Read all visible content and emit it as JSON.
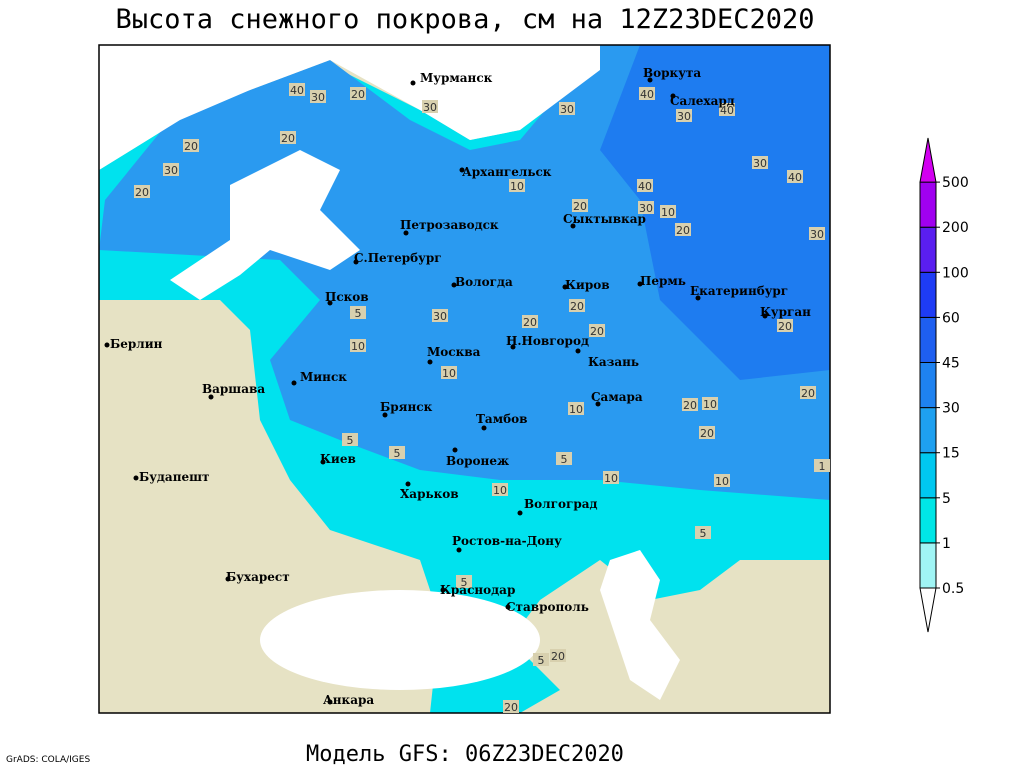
{
  "title": "Высота снежного покрова, см на 12Z23DEC2020",
  "subtitle": "Модель GFS: 06Z23DEC2020",
  "credit": "GrADS: COLA/IGES",
  "cities": [
    "Мурманск",
    "Воркута",
    "Салехард",
    "Архангельск",
    "Петрозаводск",
    "Сыктывкар",
    "С.Петербург",
    "Вологда",
    "Киров",
    "Пермь",
    "Екатеринбург",
    "Курган",
    "Псков",
    "Берлин",
    "Н.Новгород",
    "Москва",
    "Казань",
    "Минск",
    "Варшава",
    "Брянск",
    "Тамбов",
    "Самара",
    "Киев",
    "Воронеж",
    "Будапешт",
    "Харьков",
    "Волгоград",
    "Ростов-на-Дону",
    "Бухарест",
    "Краснодар",
    "Ставрополь",
    "Анкара"
  ],
  "contour_labels": [
    "40",
    "30",
    "20",
    "30",
    "30",
    "40",
    "30",
    "40",
    "20",
    "20",
    "30",
    "20",
    "10",
    "20",
    "40",
    "30",
    "10",
    "20",
    "30",
    "40",
    "30",
    "20",
    "20",
    "20",
    "30",
    "5",
    "10",
    "10",
    "20",
    "20",
    "20",
    "10",
    "20",
    "10",
    "5",
    "5",
    "5",
    "10",
    "10",
    "10",
    "5",
    "5",
    "20",
    "5",
    "20",
    "1"
  ],
  "legend": {
    "levels": [
      0.5,
      1,
      5,
      15,
      30,
      45,
      60,
      100,
      200,
      500
    ],
    "colors": [
      "#ffffff",
      "#a0f5f5",
      "#00e6e6",
      "#00c8f0",
      "#1ea0f0",
      "#1e82f0",
      "#1e5ff0",
      "#1e3cf5",
      "#5a1ef0",
      "#a000f0",
      "#d200f0"
    ]
  }
}
